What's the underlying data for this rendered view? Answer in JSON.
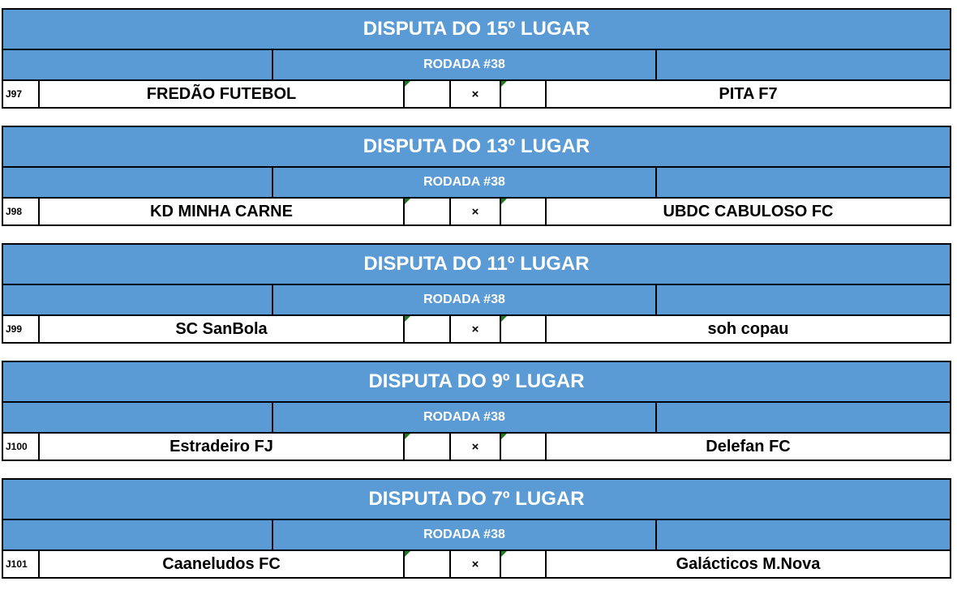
{
  "colors": {
    "header_blue": "#5b9bd5",
    "triangle_green": "#1f7a1e",
    "border_black": "#000000"
  },
  "icons": {
    "error_indicator": "green-corner-triangle"
  },
  "blocks": [
    {
      "title": "DISPUTA DO 15º LUGAR",
      "round": "RODADA #38",
      "code": "J97",
      "home": "FREDÃO FUTEBOL",
      "home_score": "",
      "vs": "×",
      "away_score": "",
      "away": "PITA F7"
    },
    {
      "title": "DISPUTA DO 13º LUGAR",
      "round": "RODADA #38",
      "code": "J98",
      "home": "KD MINHA CARNE",
      "home_score": "",
      "vs": "×",
      "away_score": "",
      "away": "UBDC CABULOSO FC"
    },
    {
      "title": "DISPUTA DO 11º LUGAR",
      "round": "RODADA #38",
      "code": "J99",
      "home": "SC SanBola",
      "home_score": "",
      "vs": "×",
      "away_score": "",
      "away": "soh copau"
    },
    {
      "title": "DISPUTA DO 9º LUGAR",
      "round": "RODADA #38",
      "code": "J100",
      "home": "Estradeiro FJ",
      "home_score": "",
      "vs": "×",
      "away_score": "",
      "away": "Delefan FC"
    },
    {
      "title": "DISPUTA DO 7º LUGAR",
      "round": "RODADA #38",
      "code": "J101",
      "home": "Caaneludos FC",
      "home_score": "",
      "vs": "×",
      "away_score": "",
      "away": "Galácticos M.Nova"
    }
  ]
}
